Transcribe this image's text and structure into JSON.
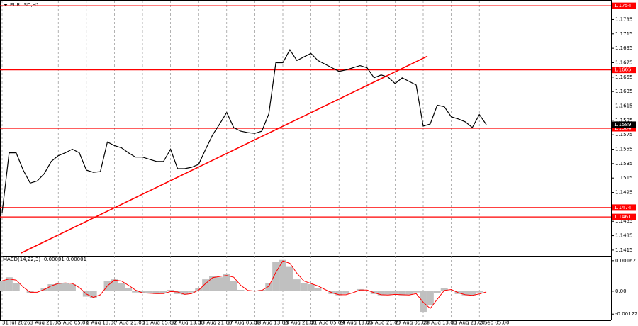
{
  "chart_data": [
    {
      "type": "line",
      "title": "EURUSD,H1",
      "categories": [
        "31 Jul 2026",
        null,
        null,
        null,
        "3 Aug 21:00",
        null,
        null,
        null,
        "5 Aug 05:00",
        null,
        null,
        null,
        "6 Aug 13:00",
        null,
        null,
        null,
        "7 Aug 21:00",
        null,
        null,
        null,
        "11 Aug 05:00",
        null,
        null,
        null,
        "12 Aug 13:00",
        null,
        null,
        null,
        "13 Aug 21:00",
        null,
        null,
        null,
        "17 Aug 05:00",
        null,
        null,
        null,
        "18 Aug 13:00",
        null,
        null,
        null,
        "19 Aug 21:00",
        null,
        null,
        null,
        "21 Aug 05:00",
        null,
        null,
        null,
        "24 Aug 13:00",
        null,
        null,
        null,
        "25 Aug 21:00",
        null,
        null,
        null,
        "27 Aug 05:00",
        null,
        null,
        null,
        "28 Aug 13:00",
        null,
        null,
        null,
        "31 Aug 21:00",
        null,
        null,
        null,
        "2 Sep 05:00",
        null
      ],
      "series": [
        {
          "color": "#000000",
          "values": [
            1.1467,
            1.155,
            1.155,
            1.1526,
            1.1508,
            1.1511,
            1.1521,
            1.1538,
            1.1546,
            1.155,
            1.1555,
            1.155,
            1.1526,
            1.1523,
            1.1524,
            1.1565,
            1.156,
            1.1557,
            1.155,
            1.1544,
            1.1544,
            1.1541,
            1.1538,
            1.1538,
            1.1555,
            1.1528,
            1.1528,
            1.153,
            1.1534,
            1.1555,
            1.1575,
            1.159,
            1.1606,
            1.1585,
            1.158,
            1.1578,
            1.1577,
            1.158,
            1.1604,
            1.1675,
            1.1675,
            1.1693,
            1.1678,
            1.1683,
            1.1688,
            1.1678,
            1.1673,
            1.1668,
            1.1663,
            1.1665,
            1.1668,
            1.1671,
            1.1668,
            1.1654,
            1.1658,
            1.1655,
            1.1646,
            1.1654,
            1.1649,
            1.1644,
            1.1587,
            1.159,
            1.1616,
            1.1614,
            1.16,
            1.1597,
            1.1593,
            1.1585,
            1.1603,
            1.1589
          ]
        }
      ],
      "ylim": [
        1.141,
        1.1762
      ],
      "yticks": [
        1.1735,
        1.1715,
        1.1695,
        1.1675,
        1.1655,
        1.1635,
        1.1615,
        1.1595,
        1.1575,
        1.1555,
        1.1535,
        1.1515,
        1.1495,
        1.1455,
        1.1435,
        1.1415
      ],
      "levels": [
        1.1754,
        1.1665,
        1.1584,
        1.1474,
        1.1461
      ],
      "level_color": "#ff0000",
      "last_price": 1.1589,
      "trendline": {
        "color": "#ff0000",
        "x": [
          2.7,
          60.6
        ],
        "values": [
          1.1411,
          1.1684
        ]
      },
      "grid": true
    },
    {
      "type": "macd",
      "title": "MACD(14,22,3) -0.00001 0.00001",
      "series": [
        {
          "kind": "histogram",
          "color": "#c0c0c0",
          "values": [
            0.00055,
            0.00074,
            0.00044,
            0,
            -0.00011,
            0,
            0.00018,
            0.00037,
            0.00044,
            0.00044,
            0.00037,
            0,
            -0.00029,
            -0.00037,
            0,
            0.00055,
            0.00063,
            0.00044,
            0.00018,
            -7e-05,
            -0.00011,
            -0.00011,
            -0.00015,
            -0.00011,
            7e-05,
            -0.00015,
            -0.00018,
            -7e-05,
            0.00018,
            0.00063,
            0.00081,
            0.00074,
            0.00092,
            0.00055,
            7e-05,
            0,
            0,
            7e-05,
            0.00044,
            0.00155,
            0.00166,
            0.00129,
            0.00063,
            0.00044,
            0.00037,
            0.00018,
            0,
            -0.00015,
            -0.00022,
            -0.00015,
            0,
            0.00011,
            0,
            -0.00015,
            -0.00022,
            -0.00018,
            -0.00015,
            -0.00022,
            -0.00018,
            -7e-05,
            -0.0011,
            -0.00074,
            -0.00011,
            0.00018,
            0,
            -0.00015,
            -0.00022,
            -0.00022,
            -7e-05,
            0
          ]
        },
        {
          "kind": "line",
          "color": "#ff0000",
          "values": [
            0.00055,
            0.00065,
            0.00059,
            0.00022,
            -6e-05,
            -6e-05,
            9e-05,
            0.00028,
            0.00041,
            0.00044,
            0.00041,
            0.00019,
            -0.00015,
            -0.00033,
            -0.00019,
            0.00028,
            0.00059,
            0.00054,
            0.00031,
            6e-05,
            -9e-05,
            -0.00011,
            -0.00013,
            -0.00013,
            -2e-05,
            -4e-05,
            -0.00017,
            -0.00013,
            6e-05,
            0.00041,
            0.00072,
            0.00078,
            0.00083,
            0.00074,
            0.00031,
            4e-05,
            0,
            4e-05,
            0.00026,
            0.001,
            0.00161,
            0.00148,
            0.00096,
            0.00054,
            0.00041,
            0.00028,
            9e-05,
            -8e-05,
            -0.00019,
            -0.00019,
            -8e-05,
            6e-05,
            6e-05,
            -8e-05,
            -0.00019,
            -0.0002,
            -0.00017,
            -0.00019,
            -0.0002,
            -0.00013,
            -0.00059,
            -0.00092,
            -0.00043,
            4e-05,
            9e-05,
            -8e-05,
            -0.00019,
            -0.00022,
            -0.00015,
            -4e-05
          ]
        }
      ],
      "ylim": [
        -0.00155,
        0.00184
      ],
      "yticks": [
        0.00162,
        {
          "value": 0,
          "label": "0.00"
        },
        -0.00122
      ]
    }
  ]
}
